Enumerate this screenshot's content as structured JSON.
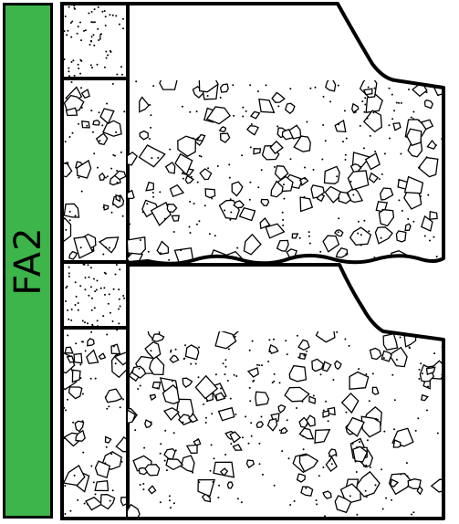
{
  "facies_label": "FA2",
  "colors": {
    "facies_fill": "#3db54a",
    "stroke": "#000000",
    "background": "#ffffff"
  },
  "units": [
    {
      "lithology": "sand"
    },
    {
      "lithology": "conglomerate"
    },
    {
      "lithology": "sand"
    },
    {
      "lithology": "conglomerate"
    }
  ]
}
